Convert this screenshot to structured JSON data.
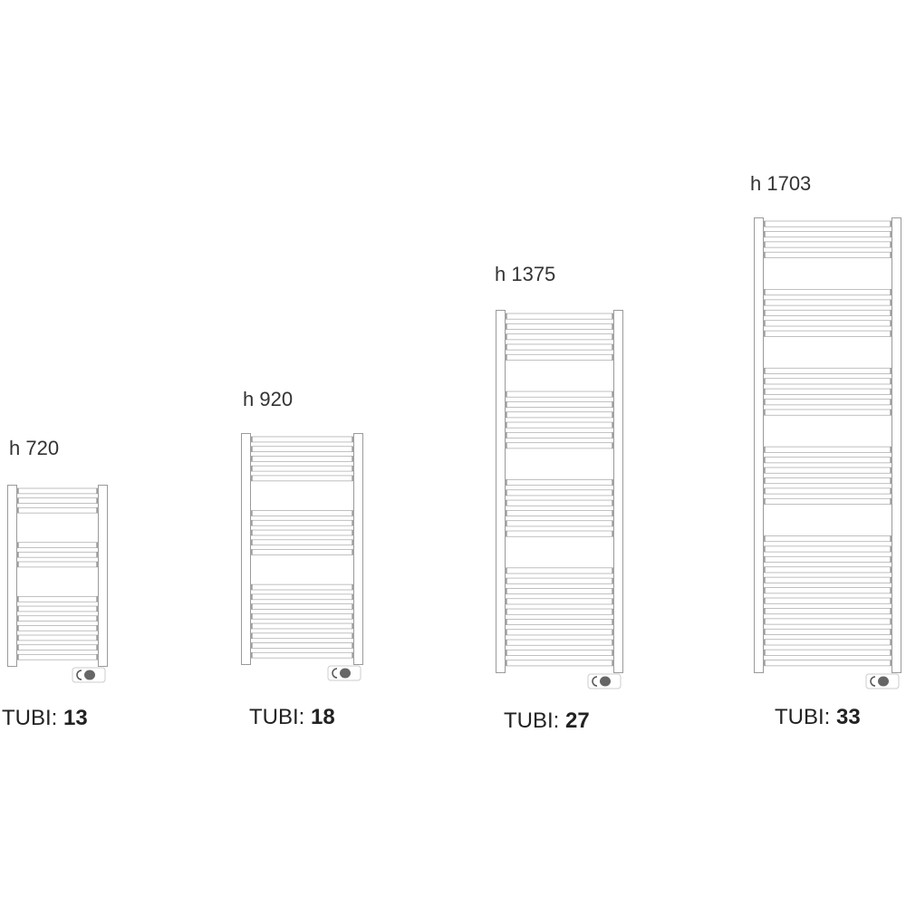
{
  "radiators": [
    {
      "height_label": "h 720",
      "tubi_label": "TUBI:",
      "tubi_count": "13",
      "tube_groups": [
        3,
        3,
        7
      ]
    },
    {
      "height_label": "h 920",
      "tubi_label": "TUBI:",
      "tubi_count": "18",
      "tube_groups": [
        5,
        5,
        8
      ]
    },
    {
      "height_label": "h 1375",
      "tubi_label": "TUBI:",
      "tubi_count": "27",
      "tube_groups": [
        5,
        6,
        6,
        10
      ]
    },
    {
      "height_label": "h 1703",
      "tubi_label": "TUBI:",
      "tubi_count": "33",
      "tube_groups": [
        4,
        5,
        5,
        6,
        13
      ]
    }
  ],
  "colors": {
    "outline": "#9a9a9a",
    "thermostat_knob": "#666666"
  }
}
